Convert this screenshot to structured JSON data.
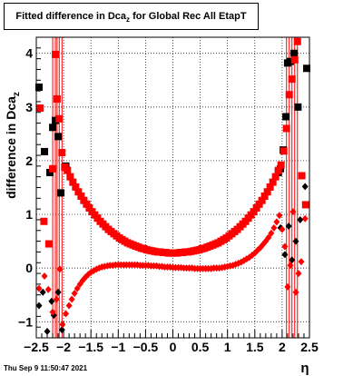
{
  "chart_data": {
    "type": "scatter",
    "title": "Fitted difference in Dca",
    "title_sub": "z",
    "title_rest": " for Global Rec All EtapT",
    "ylabel": "difference in Dca",
    "ylabel_sub": "z",
    "xlabel": "η",
    "xlim": [
      -2.5,
      2.5
    ],
    "ylim": [
      -1.3,
      4.3
    ],
    "x_ticks": [
      -2.5,
      -2,
      -1.5,
      -1,
      -0.5,
      0,
      0.5,
      1,
      1.5,
      2,
      2.5
    ],
    "x_tick_labels": [
      "−2.5",
      "−2",
      "−1.5",
      "−1",
      "−0.5",
      "0",
      "0.5",
      "1",
      "1.5",
      "2",
      "2.5"
    ],
    "y_ticks": [
      -1,
      0,
      1,
      2,
      3,
      4
    ],
    "y_tick_labels": [
      "−1",
      "0",
      "1",
      "2",
      "3",
      "4"
    ],
    "grid": true,
    "series": [
      {
        "color": "#000000",
        "marker": "square",
        "points": [
          [
            -2.45,
            3.37
          ],
          [
            -2.35,
            2.17
          ],
          [
            -2.25,
            1.78
          ],
          [
            -2.2,
            2.62
          ],
          [
            -2.15,
            2.75
          ],
          [
            -2.1,
            2.45
          ],
          [
            -2.05,
            1.4
          ],
          [
            -1.96,
            1.9
          ],
          [
            1.93,
            1.78
          ],
          [
            1.97,
            1.85
          ],
          [
            2.02,
            2.2
          ],
          [
            2.07,
            2.82
          ],
          [
            2.1,
            3.82
          ],
          [
            2.15,
            3.85
          ],
          [
            2.22,
            4.0
          ],
          [
            2.29,
            3.0
          ],
          [
            2.45,
            3.72
          ]
        ]
      },
      {
        "color": "#000000",
        "marker": "diamond",
        "points": [
          [
            -2.45,
            -0.7
          ],
          [
            -2.38,
            -0.45
          ],
          [
            -2.3,
            -1.18
          ],
          [
            -2.22,
            -0.62
          ],
          [
            -2.18,
            -0.88
          ],
          [
            -2.1,
            -0.45
          ],
          [
            -2.03,
            -1.15
          ],
          [
            1.97,
            0.75
          ],
          [
            2.05,
            0.25
          ],
          [
            2.12,
            0.78
          ],
          [
            2.18,
            0.15
          ],
          [
            2.25,
            0.5
          ],
          [
            2.33,
            0.9
          ],
          [
            2.42,
            1.52
          ]
        ]
      },
      {
        "color": "#ff0000",
        "marker": "square",
        "points": [
          [
            -2.43,
            2.98
          ],
          [
            -2.36,
            0.87
          ],
          [
            -2.27,
            0.45
          ],
          [
            -2.2,
            1.85
          ],
          [
            -2.15,
            3.98
          ],
          [
            -2.12,
            3.15
          ],
          [
            -2.08,
            2.78
          ],
          [
            -2.03,
            2.15
          ],
          [
            -1.98,
            1.88
          ],
          [
            -1.93,
            1.82
          ],
          [
            -1.88,
            1.7
          ],
          [
            -1.83,
            1.6
          ],
          [
            -1.78,
            1.51
          ],
          [
            -1.73,
            1.42
          ],
          [
            -1.68,
            1.34
          ],
          [
            -1.63,
            1.26
          ],
          [
            -1.58,
            1.19
          ],
          [
            -1.53,
            1.12
          ],
          [
            -1.48,
            1.05
          ],
          [
            -1.43,
            0.99
          ],
          [
            -1.38,
            0.93
          ],
          [
            -1.33,
            0.87
          ],
          [
            -1.28,
            0.82
          ],
          [
            -1.23,
            0.77
          ],
          [
            -1.18,
            0.72
          ],
          [
            -1.13,
            0.68
          ],
          [
            -1.08,
            0.64
          ],
          [
            -1.03,
            0.6
          ],
          [
            -0.98,
            0.56
          ],
          [
            -0.93,
            0.53
          ],
          [
            -0.88,
            0.5
          ],
          [
            -0.83,
            0.47
          ],
          [
            -0.78,
            0.45
          ],
          [
            -0.73,
            0.43
          ],
          [
            -0.68,
            0.41
          ],
          [
            -0.63,
            0.39
          ],
          [
            -0.58,
            0.37
          ],
          [
            -0.53,
            0.36
          ],
          [
            -0.48,
            0.34
          ],
          [
            -0.43,
            0.33
          ],
          [
            -0.38,
            0.32
          ],
          [
            -0.33,
            0.31
          ],
          [
            -0.28,
            0.3
          ],
          [
            -0.23,
            0.3
          ],
          [
            -0.18,
            0.29
          ],
          [
            -0.13,
            0.29
          ],
          [
            -0.08,
            0.28
          ],
          [
            -0.03,
            0.28
          ],
          [
            0.03,
            0.28
          ],
          [
            0.08,
            0.28
          ],
          [
            0.13,
            0.29
          ],
          [
            0.18,
            0.29
          ],
          [
            0.23,
            0.3
          ],
          [
            0.28,
            0.3
          ],
          [
            0.33,
            0.31
          ],
          [
            0.38,
            0.32
          ],
          [
            0.43,
            0.33
          ],
          [
            0.48,
            0.34
          ],
          [
            0.53,
            0.36
          ],
          [
            0.58,
            0.37
          ],
          [
            0.63,
            0.39
          ],
          [
            0.68,
            0.41
          ],
          [
            0.73,
            0.43
          ],
          [
            0.78,
            0.45
          ],
          [
            0.83,
            0.47
          ],
          [
            0.88,
            0.5
          ],
          [
            0.93,
            0.53
          ],
          [
            0.98,
            0.56
          ],
          [
            1.03,
            0.6
          ],
          [
            1.08,
            0.64
          ],
          [
            1.13,
            0.68
          ],
          [
            1.18,
            0.72
          ],
          [
            1.23,
            0.77
          ],
          [
            1.28,
            0.82
          ],
          [
            1.33,
            0.87
          ],
          [
            1.38,
            0.93
          ],
          [
            1.43,
            0.99
          ],
          [
            1.48,
            1.05
          ],
          [
            1.53,
            1.12
          ],
          [
            1.58,
            1.19
          ],
          [
            1.63,
            1.26
          ],
          [
            1.68,
            1.34
          ],
          [
            1.73,
            1.42
          ],
          [
            1.78,
            1.51
          ],
          [
            1.83,
            1.6
          ],
          [
            1.88,
            1.7
          ],
          [
            1.93,
            1.82
          ],
          [
            1.98,
            1.92
          ],
          [
            2.03,
            2.18
          ],
          [
            2.08,
            2.6
          ],
          [
            2.13,
            3.23
          ],
          [
            2.18,
            3.52
          ],
          [
            2.23,
            3.88
          ],
          [
            2.28,
            4.22
          ],
          [
            2.36,
            1.72
          ],
          [
            2.43,
            1.18
          ]
        ]
      },
      {
        "color": "#ff0000",
        "marker": "diamond",
        "points": [
          [
            -2.45,
            -0.38
          ],
          [
            -2.35,
            -0.15
          ],
          [
            -2.28,
            -0.4
          ],
          [
            -2.2,
            -0.82
          ],
          [
            -2.13,
            -0.58
          ],
          [
            -2.07,
            -0.02
          ],
          [
            -2.02,
            -1.05
          ],
          [
            -1.96,
            -0.85
          ],
          [
            -1.9,
            -0.7
          ],
          [
            -1.85,
            -0.58
          ],
          [
            -1.8,
            -0.47
          ],
          [
            -1.75,
            -0.38
          ],
          [
            -1.7,
            -0.3
          ],
          [
            -1.65,
            -0.23
          ],
          [
            -1.6,
            -0.17
          ],
          [
            -1.55,
            -0.12
          ],
          [
            -1.5,
            -0.08
          ],
          [
            -1.45,
            -0.05
          ],
          [
            -1.4,
            -0.02
          ],
          [
            -1.35,
            0.0
          ],
          [
            -1.3,
            0.02
          ],
          [
            -1.25,
            0.03
          ],
          [
            -1.2,
            0.04
          ],
          [
            -1.15,
            0.05
          ],
          [
            -1.1,
            0.05
          ],
          [
            -1.05,
            0.06
          ],
          [
            -1.0,
            0.06
          ],
          [
            -0.95,
            0.06
          ],
          [
            -0.9,
            0.06
          ],
          [
            -0.85,
            0.06
          ],
          [
            -0.8,
            0.06
          ],
          [
            -0.75,
            0.06
          ],
          [
            -0.7,
            0.06
          ],
          [
            -0.65,
            0.06
          ],
          [
            -0.6,
            0.05
          ],
          [
            -0.55,
            0.05
          ],
          [
            -0.5,
            0.05
          ],
          [
            -0.45,
            0.05
          ],
          [
            -0.4,
            0.04
          ],
          [
            -0.35,
            0.04
          ],
          [
            -0.3,
            0.04
          ],
          [
            -0.25,
            0.03
          ],
          [
            -0.2,
            0.03
          ],
          [
            -0.15,
            0.02
          ],
          [
            -0.1,
            0.02
          ],
          [
            -0.05,
            0.02
          ],
          [
            0.0,
            0.01
          ],
          [
            0.05,
            0.01
          ],
          [
            0.1,
            0.01
          ],
          [
            0.15,
            0.01
          ],
          [
            0.2,
            0.0
          ],
          [
            0.25,
            0.0
          ],
          [
            0.3,
            0.0
          ],
          [
            0.35,
            0.0
          ],
          [
            0.4,
            -0.01
          ],
          [
            0.45,
            -0.01
          ],
          [
            0.5,
            -0.01
          ],
          [
            0.55,
            -0.01
          ],
          [
            0.6,
            -0.01
          ],
          [
            0.65,
            -0.01
          ],
          [
            0.7,
            -0.01
          ],
          [
            0.75,
            0.0
          ],
          [
            0.8,
            0.0
          ],
          [
            0.85,
            0.0
          ],
          [
            0.9,
            0.01
          ],
          [
            0.95,
            0.02
          ],
          [
            1.0,
            0.03
          ],
          [
            1.05,
            0.04
          ],
          [
            1.1,
            0.05
          ],
          [
            1.15,
            0.07
          ],
          [
            1.2,
            0.09
          ],
          [
            1.25,
            0.11
          ],
          [
            1.3,
            0.14
          ],
          [
            1.35,
            0.17
          ],
          [
            1.4,
            0.2
          ],
          [
            1.45,
            0.24
          ],
          [
            1.5,
            0.28
          ],
          [
            1.55,
            0.33
          ],
          [
            1.6,
            0.38
          ],
          [
            1.65,
            0.44
          ],
          [
            1.7,
            0.5
          ],
          [
            1.75,
            0.57
          ],
          [
            1.8,
            0.65
          ],
          [
            1.85,
            0.75
          ],
          [
            1.9,
            0.86
          ],
          [
            1.95,
            0.98
          ],
          [
            2.0,
            0.72
          ],
          [
            2.05,
            0.4
          ],
          [
            2.1,
            -0.35
          ],
          [
            2.15,
            0.05
          ],
          [
            2.2,
            1.05
          ],
          [
            2.25,
            -0.45
          ],
          [
            2.3,
            -0.1
          ],
          [
            2.35,
            0.12
          ],
          [
            2.42,
            0.92
          ]
        ]
      }
    ],
    "error_bars": {
      "color": "#ff0000",
      "x": [
        -2.2,
        -2.15,
        -2.12,
        -2.08,
        -2.03,
        2.08,
        2.13,
        2.18,
        2.23,
        2.28
      ]
    }
  },
  "footer": "Thu Sep  9 11:50:47 2021"
}
